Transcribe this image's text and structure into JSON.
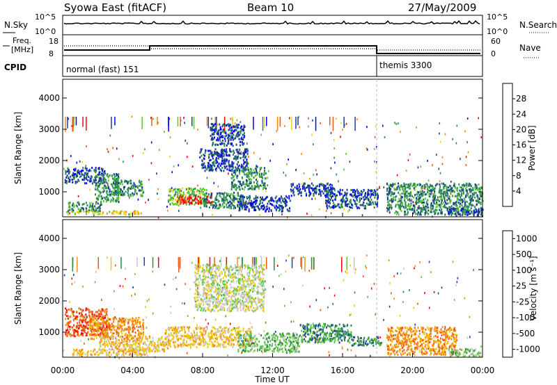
{
  "header": {
    "title": "Syowa East (fitACF)",
    "beam": "Beam 10",
    "date": "27/May/2009"
  },
  "status": {
    "nsky_label": "N.Sky",
    "nsky_ticks": [
      "10^5",
      "10^0"
    ],
    "nsearch_label": "N.Search",
    "freq_label_top": "Freq.",
    "freq_label_bottom": "[MHz]",
    "freq_ticks": [
      "18",
      "8"
    ],
    "nave_ticks": [
      "60",
      "0"
    ],
    "nave_label": "Nave",
    "cpid_label": "CPID",
    "cpid_segments": [
      {
        "label": "normal (fast) 151",
        "start_hour": 0
      },
      {
        "label": "themis 3300",
        "start_hour": 18
      }
    ]
  },
  "colors": {
    "power_scale": [
      "#0000ff",
      "#1e3c96",
      "#2d8c50",
      "#55c832",
      "#f0d20f",
      "#f58c14",
      "#eb5a14",
      "#ff0000"
    ],
    "velocity_scale": [
      "#1e3cb4",
      "#2d8c46",
      "#5ac83c",
      "#c8c8c8",
      "#f0c80a",
      "#f58c14",
      "#f05a14",
      "#ff0000"
    ]
  },
  "chart_data": [
    {
      "type": "heatmap",
      "name": "power",
      "ylabel": "Slant Range [km]",
      "y_ticks": [
        1000,
        2000,
        3000,
        4000
      ],
      "ylim": [
        200,
        4600
      ],
      "x_range_hours": [
        0,
        24
      ],
      "colorbar_label": "Power [dB]",
      "colorbar_ticks": [
        "28",
        "24",
        "20",
        "16",
        "12",
        "8",
        "4"
      ],
      "blobs": [
        {
          "t0": 0.2,
          "t1": 4.5,
          "r0": 300,
          "r1": 420,
          "level": 4
        },
        {
          "t0": 0.3,
          "t1": 2.2,
          "r0": 400,
          "r1": 700,
          "level": 2
        },
        {
          "t0": 0.1,
          "t1": 2.4,
          "r0": 1300,
          "r1": 1800,
          "level": 1
        },
        {
          "t0": 1.8,
          "t1": 3.2,
          "r0": 700,
          "r1": 1600,
          "level": 2
        },
        {
          "t0": 2.8,
          "t1": 4.6,
          "r0": 900,
          "r1": 1400,
          "level": 2
        },
        {
          "t0": 6.0,
          "t1": 8.2,
          "r0": 600,
          "r1": 1150,
          "level": 3
        },
        {
          "t0": 6.5,
          "t1": 8.5,
          "r0": 650,
          "r1": 900,
          "level": 7
        },
        {
          "t0": 8.0,
          "t1": 10.4,
          "r0": 500,
          "r1": 1000,
          "level": 2
        },
        {
          "t0": 8.4,
          "t1": 10.4,
          "r0": 2500,
          "r1": 3200,
          "level": 1
        },
        {
          "t0": 7.8,
          "t1": 10.6,
          "r0": 1700,
          "r1": 2400,
          "level": 1
        },
        {
          "t0": 9.6,
          "t1": 11.6,
          "r0": 1100,
          "r1": 1800,
          "level": 2
        },
        {
          "t0": 10.0,
          "t1": 13.0,
          "r0": 400,
          "r1": 900,
          "level": 1
        },
        {
          "t0": 13.0,
          "t1": 15.5,
          "r0": 900,
          "r1": 1300,
          "level": 1
        },
        {
          "t0": 15.0,
          "t1": 18.0,
          "r0": 500,
          "r1": 1100,
          "level": 1
        },
        {
          "t0": 18.5,
          "t1": 24.0,
          "r0": 300,
          "r1": 1300,
          "level": 2
        },
        {
          "t0": 22.0,
          "t1": 24.0,
          "r0": 250,
          "r1": 500,
          "level": 1
        }
      ]
    },
    {
      "type": "heatmap",
      "name": "velocity",
      "ylabel": "Slant Range [km]",
      "y_ticks": [
        1000,
        2000,
        3000,
        4000
      ],
      "ylim": [
        200,
        4600
      ],
      "x_range_hours": [
        0,
        24
      ],
      "xlabel": "Time UT",
      "x_ticks": [
        "00:00",
        "04:00",
        "08:00",
        "12:00",
        "16:00",
        "20:00",
        "00:00"
      ],
      "colorbar_label": "Velocity [m s⁻¹]",
      "colorbar_ticks": [
        "1000",
        "500",
        "100",
        "25",
        "-25",
        "-100",
        "-500",
        "-1000"
      ],
      "blobs": [
        {
          "t0": 0.1,
          "t1": 2.5,
          "r0": 900,
          "r1": 1800,
          "level": 6
        },
        {
          "t0": 1.5,
          "t1": 4.6,
          "r0": 800,
          "r1": 1500,
          "level": 5
        },
        {
          "t0": 0.5,
          "t1": 4.8,
          "r0": 280,
          "r1": 480,
          "level": 4
        },
        {
          "t0": 2.0,
          "t1": 6.0,
          "r0": 400,
          "r1": 900,
          "level": 4
        },
        {
          "t0": 5.8,
          "t1": 10.8,
          "r0": 550,
          "r1": 1200,
          "level": 4
        },
        {
          "t0": 7.5,
          "t1": 11.5,
          "r0": 1700,
          "r1": 3200,
          "level": 3
        },
        {
          "t0": 10.0,
          "t1": 13.5,
          "r0": 400,
          "r1": 1000,
          "level": 2
        },
        {
          "t0": 13.5,
          "t1": 16.5,
          "r0": 700,
          "r1": 1300,
          "level": 1
        },
        {
          "t0": 16.5,
          "t1": 18.2,
          "r0": 600,
          "r1": 900,
          "level": 1
        },
        {
          "t0": 18.5,
          "t1": 22.5,
          "r0": 300,
          "r1": 1200,
          "level": 5
        },
        {
          "t0": 22.0,
          "t1": 24.0,
          "r0": 250,
          "r1": 500,
          "level": 2
        }
      ]
    }
  ]
}
